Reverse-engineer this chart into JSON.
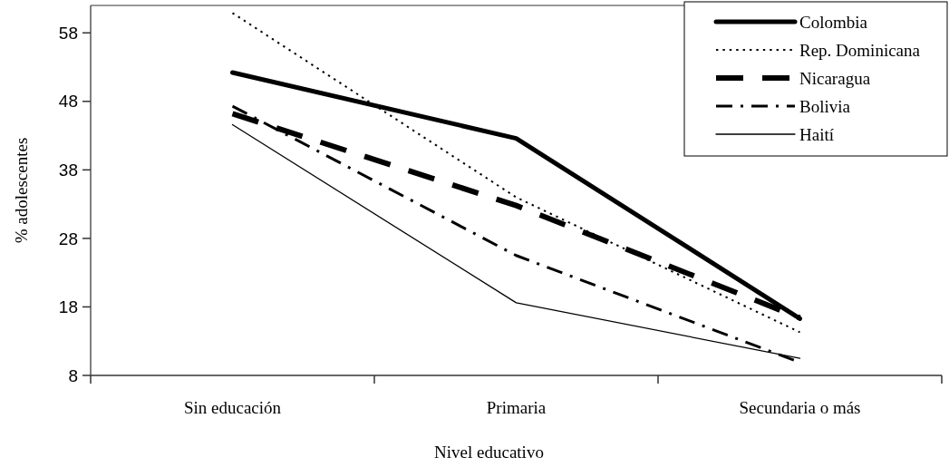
{
  "chart_data": {
    "type": "line",
    "xlabel": "Nivel educativo",
    "ylabel": "% adolescentes",
    "categories": [
      "Sin educación",
      "Primaria",
      "Secundaria o más"
    ],
    "series": [
      {
        "name": "Colombia",
        "color": "#000000",
        "line_style": "solid",
        "values": [
          52.2,
          42.6,
          16.3
        ]
      },
      {
        "name": "Rep. Dominicana",
        "color": "#000000",
        "line_style": "dotted",
        "values": [
          60.9,
          34,
          14.3
        ]
      },
      {
        "name": "Nicaragua",
        "color": "#000000",
        "line_style": "dashed",
        "values": [
          46.2,
          32.8,
          16.4
        ]
      },
      {
        "name": "Bolivia",
        "color": "#000000",
        "line_style": "dashdot",
        "values": [
          47.3,
          25.5,
          9.9
        ]
      },
      {
        "name": "Haití",
        "color": "#000000",
        "line_style": "solid",
        "values": [
          44.6,
          18.6,
          10.5
        ]
      }
    ],
    "ylim": [
      8,
      62
    ],
    "yticks": [
      8,
      18,
      28,
      38,
      48,
      58
    ],
    "grid": false,
    "legend": "top right",
    "marker": "none"
  }
}
